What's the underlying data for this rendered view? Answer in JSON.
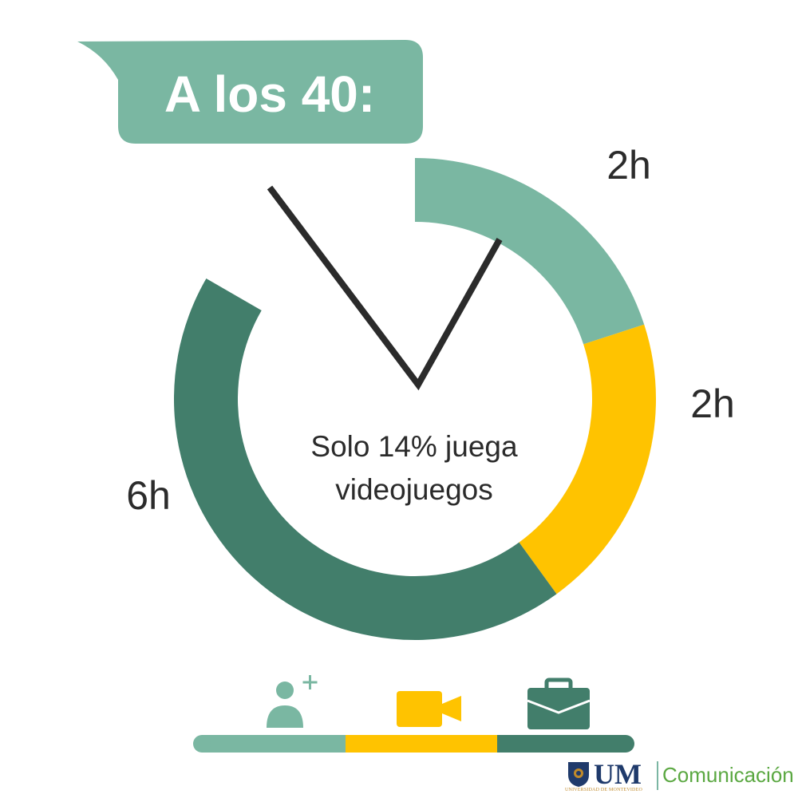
{
  "title": "A los 40:",
  "center_text": [
    "Solo 14% juega",
    "videojuegos"
  ],
  "colors": {
    "light_green": "#7ab7a2",
    "yellow": "#ffc300",
    "dark_green": "#427e6b",
    "hand": "#2b2b2b",
    "brand_blue": "#1f3a6b",
    "brand_gold": "#c08a2a",
    "brand_green": "#5ba842"
  },
  "chart_data": {
    "type": "pie",
    "donut": true,
    "categories": [
      "social",
      "media",
      "work"
    ],
    "values": [
      2,
      2,
      6
    ],
    "labels": [
      "2h",
      "2h",
      "6h"
    ],
    "colors": [
      "#7ab7a2",
      "#ffc300",
      "#427e6b"
    ],
    "title": "A los 40:"
  },
  "legend": {
    "items": [
      {
        "icon": "person-add-icon",
        "color": "#7ab7a2",
        "value": 2
      },
      {
        "icon": "video-camera-icon",
        "color": "#ffc300",
        "value": 2
      },
      {
        "icon": "briefcase-icon",
        "color": "#427e6b",
        "value": 6
      }
    ]
  },
  "brand": {
    "logo_text": "UM",
    "logo_subtext": "UNIVERSIDAD DE MONTEVIDEO",
    "name": "Comunicación"
  }
}
